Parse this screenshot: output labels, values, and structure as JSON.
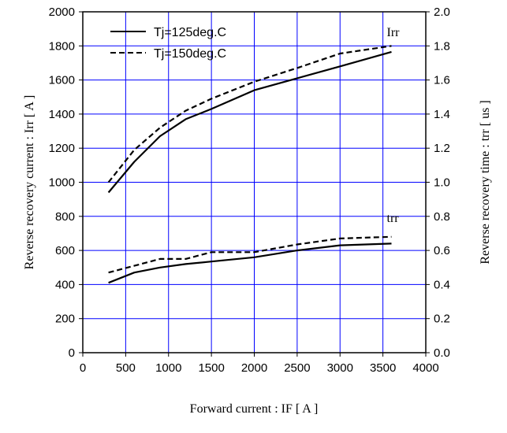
{
  "chart_data": {
    "type": "line",
    "xlabel": "Forward current : IF [ A ]",
    "ylabel_left": "Reverse recovery current : Irr [ A ]",
    "ylabel_right": "Reverse recovery time : trr [ us ]",
    "xlim": [
      0,
      4000
    ],
    "ylim_left": [
      0,
      2000
    ],
    "ylim_right": [
      0.0,
      2.0
    ],
    "x_ticks": [
      "0",
      "500",
      "1000",
      "1500",
      "2000",
      "2500",
      "3000",
      "3500",
      "4000"
    ],
    "y_left_ticks": [
      "0",
      "200",
      "400",
      "600",
      "800",
      "1000",
      "1200",
      "1400",
      "1600",
      "1800",
      "2000"
    ],
    "y_right_ticks": [
      "0.0",
      "0.2",
      "0.4",
      "0.6",
      "0.8",
      "1.0",
      "1.2",
      "1.4",
      "1.6",
      "1.8",
      "2.0"
    ],
    "grid": true,
    "legend": {
      "placement": "top-left",
      "entries": [
        {
          "label": "Tj=125deg.C",
          "style": "solid"
        },
        {
          "label": "Tj=150deg.C",
          "style": "dashed"
        }
      ]
    },
    "annotations": [
      {
        "text": "Irr",
        "x": 3600,
        "y": 1880
      },
      {
        "text": "trr",
        "x": 3600,
        "y": 790
      }
    ],
    "series": [
      {
        "name": "Tj=125deg.C",
        "group": "Irr",
        "axis": "left",
        "style": "solid",
        "x": [
          300,
          600,
          900,
          1200,
          1500,
          2000,
          2500,
          3000,
          3600
        ],
        "y": [
          940,
          1120,
          1270,
          1370,
          1430,
          1540,
          1610,
          1680,
          1765
        ]
      },
      {
        "name": "Tj=150deg.C",
        "group": "Irr",
        "axis": "left",
        "style": "dashed",
        "x": [
          300,
          600,
          900,
          1200,
          1500,
          2000,
          2500,
          3000,
          3600
        ],
        "y": [
          1000,
          1190,
          1320,
          1420,
          1490,
          1590,
          1670,
          1755,
          1800
        ]
      },
      {
        "name": "Tj=125deg.C",
        "group": "trr",
        "axis": "right",
        "style": "solid",
        "x": [
          300,
          600,
          900,
          1200,
          1500,
          2000,
          2500,
          3000,
          3600
        ],
        "y": [
          0.41,
          0.47,
          0.5,
          0.52,
          0.535,
          0.56,
          0.6,
          0.63,
          0.64
        ]
      },
      {
        "name": "Tj=150deg.C",
        "group": "trr",
        "axis": "right",
        "style": "dashed",
        "x": [
          300,
          600,
          900,
          1200,
          1500,
          2000,
          2500,
          3000,
          3600
        ],
        "y": [
          0.47,
          0.51,
          0.55,
          0.55,
          0.59,
          0.59,
          0.635,
          0.67,
          0.68
        ]
      }
    ],
    "colors": {
      "grid": "#0000ff",
      "line": "#000000",
      "background": "#ffffff"
    }
  }
}
